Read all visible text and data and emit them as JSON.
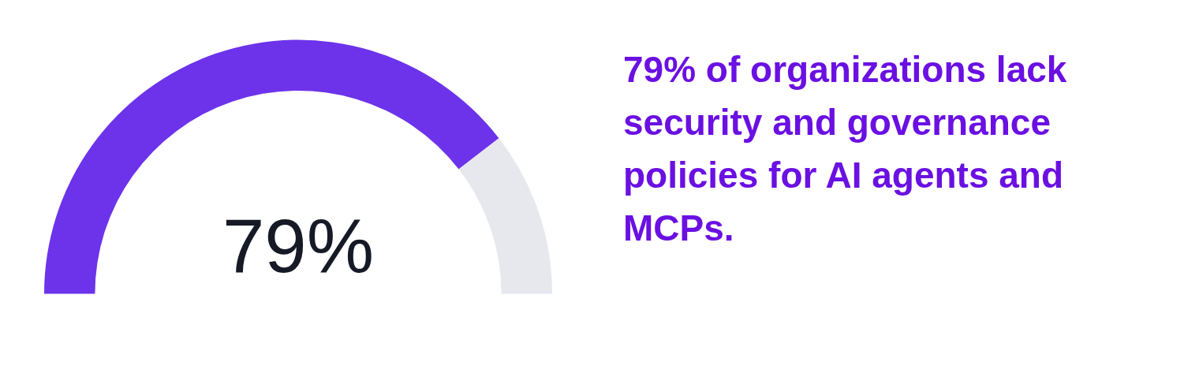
{
  "chart_data": {
    "type": "donut",
    "categories": [
      null,
      null
    ],
    "values": [
      79,
      21
    ],
    "colors": [
      "#6c33ea",
      "#e7e7ee"
    ],
    "value_labels": [
      "79%",
      null
    ],
    "annotations": [
      "79% of organizations lack security and governance policies for AI agents and MCPs."
    ]
  }
}
